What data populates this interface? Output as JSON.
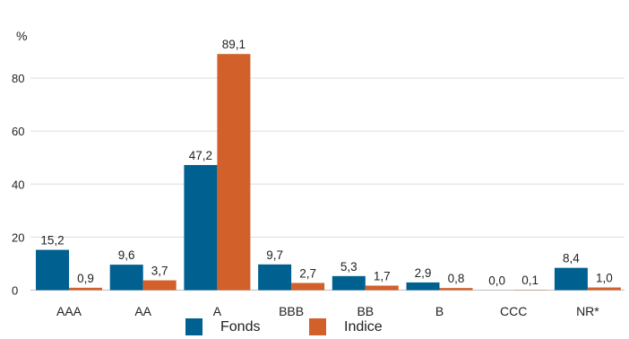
{
  "chart_data": {
    "type": "bar",
    "ylabel": "%",
    "ylim": [
      0,
      100
    ],
    "yticks": [
      0,
      20,
      40,
      60,
      80
    ],
    "grid": true,
    "legend_position": "bottom",
    "categories": [
      "AAA",
      "AA",
      "A",
      "BBB",
      "BB",
      "B",
      "CCC",
      "NR*"
    ],
    "series": [
      {
        "name": "Fonds",
        "color": "#00608f",
        "values": [
          15.2,
          9.6,
          47.2,
          9.7,
          5.3,
          2.9,
          0.0,
          8.4
        ],
        "labels": [
          "15,2",
          "9,6",
          "47,2",
          "9,7",
          "5,3",
          "2,9",
          "0,0",
          "8,4"
        ]
      },
      {
        "name": "Indice",
        "color": "#d2602a",
        "values": [
          0.9,
          3.7,
          89.1,
          2.7,
          1.7,
          0.8,
          0.1,
          1.0
        ],
        "labels": [
          "0,9",
          "3,7",
          "89,1",
          "2,7",
          "1,7",
          "0,8",
          "0,1",
          "1,0"
        ]
      }
    ]
  }
}
